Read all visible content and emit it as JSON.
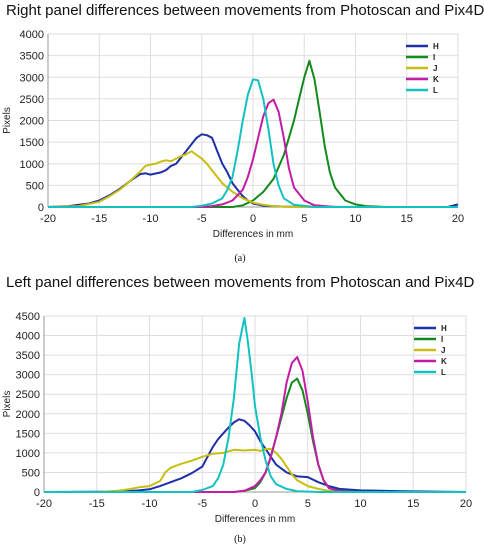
{
  "chart_data": [
    {
      "type": "line",
      "title": "Right panel differences between movements from Photoscan and Pix4D",
      "xlabel": "Differences in mm",
      "ylabel": "Pixels",
      "caption": "(a)",
      "xlim": [
        -20,
        20
      ],
      "ylim": [
        0,
        4000
      ],
      "xticks": [
        "-20",
        "-15",
        "-10",
        "-5",
        "0",
        "5",
        "10",
        "15",
        "20"
      ],
      "yticks": [
        "0",
        "500",
        "1000",
        "1500",
        "2000",
        "2500",
        "3000",
        "3500",
        "4000"
      ],
      "grid": true,
      "legend": "top-right",
      "series": [
        {
          "name": "H",
          "color": "#1f2fa8",
          "points": [
            [
              -20,
              0
            ],
            [
              -18,
              20
            ],
            [
              -16,
              80
            ],
            [
              -15,
              150
            ],
            [
              -14,
              270
            ],
            [
              -13,
              420
            ],
            [
              -12,
              600
            ],
            [
              -11,
              760
            ],
            [
              -10.5,
              780
            ],
            [
              -10,
              750
            ],
            [
              -9,
              800
            ],
            [
              -8.5,
              850
            ],
            [
              -8,
              950
            ],
            [
              -7.5,
              1000
            ],
            [
              -7,
              1150
            ],
            [
              -6.5,
              1300
            ],
            [
              -6,
              1450
            ],
            [
              -5.5,
              1600
            ],
            [
              -5,
              1680
            ],
            [
              -4.5,
              1660
            ],
            [
              -4,
              1600
            ],
            [
              -3.5,
              1300
            ],
            [
              -3,
              1000
            ],
            [
              -2.5,
              800
            ],
            [
              -2,
              550
            ],
            [
              -1.5,
              400
            ],
            [
              -1,
              250
            ],
            [
              -0.5,
              150
            ],
            [
              0,
              80
            ],
            [
              1,
              30
            ],
            [
              3,
              10
            ],
            [
              10,
              0
            ],
            [
              19,
              0
            ],
            [
              20,
              60
            ]
          ]
        },
        {
          "name": "I",
          "color": "#128a1c",
          "points": [
            [
              -20,
              0
            ],
            [
              -2,
              0
            ],
            [
              -1,
              40
            ],
            [
              0,
              150
            ],
            [
              1,
              350
            ],
            [
              2,
              650
            ],
            [
              3,
              1200
            ],
            [
              4,
              2000
            ],
            [
              4.5,
              2500
            ],
            [
              5,
              3000
            ],
            [
              5.5,
              3380
            ],
            [
              6,
              2950
            ],
            [
              6.5,
              2200
            ],
            [
              7,
              1400
            ],
            [
              7.5,
              800
            ],
            [
              8,
              450
            ],
            [
              9,
              150
            ],
            [
              10,
              60
            ],
            [
              11,
              20
            ],
            [
              13,
              0
            ],
            [
              20,
              0
            ]
          ]
        },
        {
          "name": "J",
          "color": "#c7be12",
          "points": [
            [
              -20,
              0
            ],
            [
              -17,
              20
            ],
            [
              -15,
              120
            ],
            [
              -14,
              250
            ],
            [
              -13,
              400
            ],
            [
              -12,
              600
            ],
            [
              -11,
              820
            ],
            [
              -10.5,
              950
            ],
            [
              -10,
              980
            ],
            [
              -9.5,
              1000
            ],
            [
              -9,
              1050
            ],
            [
              -8.5,
              1080
            ],
            [
              -8,
              1060
            ],
            [
              -7.5,
              1120
            ],
            [
              -7,
              1180
            ],
            [
              -6.5,
              1220
            ],
            [
              -6,
              1290
            ],
            [
              -5.5,
              1200
            ],
            [
              -5,
              1120
            ],
            [
              -4.5,
              1000
            ],
            [
              -4,
              850
            ],
            [
              -3.5,
              700
            ],
            [
              -3,
              550
            ],
            [
              -2,
              350
            ],
            [
              -1,
              200
            ],
            [
              0,
              100
            ],
            [
              1,
              50
            ],
            [
              2,
              20
            ],
            [
              4,
              0
            ],
            [
              20,
              0
            ]
          ]
        },
        {
          "name": "K",
          "color": "#c21ca6",
          "points": [
            [
              -20,
              0
            ],
            [
              -5,
              0
            ],
            [
              -4,
              20
            ],
            [
              -3,
              60
            ],
            [
              -2,
              150
            ],
            [
              -1,
              400
            ],
            [
              -0.5,
              700
            ],
            [
              0,
              1100
            ],
            [
              0.5,
              1600
            ],
            [
              1,
              2100
            ],
            [
              1.5,
              2400
            ],
            [
              2,
              2480
            ],
            [
              2.5,
              2200
            ],
            [
              3,
              1600
            ],
            [
              3.5,
              900
            ],
            [
              4,
              450
            ],
            [
              5,
              150
            ],
            [
              6,
              40
            ],
            [
              8,
              0
            ],
            [
              20,
              0
            ]
          ]
        },
        {
          "name": "L",
          "color": "#13c2c0",
          "points": [
            [
              -20,
              0
            ],
            [
              -6,
              0
            ],
            [
              -5,
              30
            ],
            [
              -4,
              80
            ],
            [
              -3,
              200
            ],
            [
              -2.5,
              400
            ],
            [
              -2,
              700
            ],
            [
              -1.5,
              1300
            ],
            [
              -1,
              2000
            ],
            [
              -0.5,
              2600
            ],
            [
              0,
              2950
            ],
            [
              0.5,
              2930
            ],
            [
              1,
              2500
            ],
            [
              1.5,
              1800
            ],
            [
              2,
              1000
            ],
            [
              2.5,
              500
            ],
            [
              3,
              200
            ],
            [
              4,
              50
            ],
            [
              6,
              0
            ],
            [
              20,
              0
            ]
          ]
        }
      ]
    },
    {
      "type": "line",
      "title": "Left panel differences between movements from Photoscan and Pix4D",
      "xlabel": "Differences in mm",
      "ylabel": "Pixels",
      "caption": "(b)",
      "xlim": [
        -20,
        20
      ],
      "ylim": [
        0,
        4500
      ],
      "xticks": [
        "-20",
        "-15",
        "-10",
        "-5",
        "0",
        "5",
        "10",
        "15",
        "20"
      ],
      "yticks": [
        "0",
        "500",
        "1000",
        "1500",
        "2000",
        "2500",
        "3000",
        "3500",
        "4000",
        "4500"
      ],
      "grid": true,
      "legend": "top-right",
      "series": [
        {
          "name": "H",
          "color": "#1f2fa8",
          "points": [
            [
              -20,
              0
            ],
            [
              -13,
              10
            ],
            [
              -11,
              40
            ],
            [
              -10,
              70
            ],
            [
              -9,
              150
            ],
            [
              -8,
              250
            ],
            [
              -7,
              350
            ],
            [
              -6,
              480
            ],
            [
              -5,
              650
            ],
            [
              -4.5,
              900
            ],
            [
              -4,
              1150
            ],
            [
              -3.5,
              1350
            ],
            [
              -3,
              1500
            ],
            [
              -2.5,
              1650
            ],
            [
              -2,
              1780
            ],
            [
              -1.5,
              1860
            ],
            [
              -1,
              1820
            ],
            [
              -0.5,
              1700
            ],
            [
              0,
              1550
            ],
            [
              0.5,
              1300
            ],
            [
              1,
              1100
            ],
            [
              1.5,
              900
            ],
            [
              2,
              700
            ],
            [
              3,
              500
            ],
            [
              4,
              400
            ],
            [
              5,
              380
            ],
            [
              6,
              250
            ],
            [
              7,
              150
            ],
            [
              8,
              80
            ],
            [
              10,
              40
            ],
            [
              14,
              20
            ],
            [
              20,
              0
            ]
          ]
        },
        {
          "name": "I",
          "color": "#128a1c",
          "points": [
            [
              -20,
              0
            ],
            [
              -2,
              0
            ],
            [
              -1,
              30
            ],
            [
              0,
              100
            ],
            [
              0.5,
              250
            ],
            [
              1,
              500
            ],
            [
              1.5,
              900
            ],
            [
              2,
              1400
            ],
            [
              2.5,
              1900
            ],
            [
              3,
              2400
            ],
            [
              3.5,
              2800
            ],
            [
              4,
              2900
            ],
            [
              4.5,
              2600
            ],
            [
              5,
              2000
            ],
            [
              5.5,
              1300
            ],
            [
              6,
              700
            ],
            [
              6.5,
              300
            ],
            [
              7,
              100
            ],
            [
              8,
              30
            ],
            [
              10,
              0
            ],
            [
              20,
              0
            ]
          ]
        },
        {
          "name": "J",
          "color": "#c7be12",
          "points": [
            [
              -20,
              0
            ],
            [
              -15,
              0
            ],
            [
              -13,
              30
            ],
            [
              -12,
              70
            ],
            [
              -11,
              120
            ],
            [
              -10,
              150
            ],
            [
              -9,
              280
            ],
            [
              -8.5,
              500
            ],
            [
              -8,
              620
            ],
            [
              -7,
              720
            ],
            [
              -6,
              800
            ],
            [
              -5,
              900
            ],
            [
              -4,
              980
            ],
            [
              -3,
              1000
            ],
            [
              -2.5,
              1040
            ],
            [
              -2,
              1080
            ],
            [
              -1,
              1060
            ],
            [
              0,
              1080
            ],
            [
              0.5,
              1050
            ],
            [
              1,
              1100
            ],
            [
              1.5,
              1100
            ],
            [
              2,
              1000
            ],
            [
              2.5,
              850
            ],
            [
              3,
              650
            ],
            [
              3.5,
              450
            ],
            [
              4,
              300
            ],
            [
              5,
              150
            ],
            [
              6,
              80
            ],
            [
              7,
              30
            ],
            [
              9,
              0
            ],
            [
              20,
              0
            ]
          ]
        },
        {
          "name": "K",
          "color": "#c21ca6",
          "points": [
            [
              -20,
              0
            ],
            [
              -2,
              0
            ],
            [
              -1,
              30
            ],
            [
              0,
              150
            ],
            [
              0.5,
              300
            ],
            [
              1,
              500
            ],
            [
              1.5,
              900
            ],
            [
              2,
              1400
            ],
            [
              2.5,
              2000
            ],
            [
              3,
              2800
            ],
            [
              3.5,
              3300
            ],
            [
              4,
              3450
            ],
            [
              4.5,
              3100
            ],
            [
              5,
              2300
            ],
            [
              5.5,
              1400
            ],
            [
              6,
              700
            ],
            [
              6.5,
              300
            ],
            [
              7,
              100
            ],
            [
              8,
              20
            ],
            [
              10,
              0
            ],
            [
              20,
              0
            ]
          ]
        },
        {
          "name": "L",
          "color": "#13c2c0",
          "points": [
            [
              -20,
              0
            ],
            [
              -6,
              0
            ],
            [
              -5,
              50
            ],
            [
              -4,
              150
            ],
            [
              -3.5,
              350
            ],
            [
              -3,
              700
            ],
            [
              -2.5,
              1400
            ],
            [
              -2,
              2400
            ],
            [
              -1.5,
              3800
            ],
            [
              -1,
              4450
            ],
            [
              -0.7,
              3900
            ],
            [
              -0.3,
              3000
            ],
            [
              0,
              2200
            ],
            [
              0.5,
              1400
            ],
            [
              1,
              800
            ],
            [
              1.5,
              400
            ],
            [
              2,
              200
            ],
            [
              3,
              80
            ],
            [
              4,
              20
            ],
            [
              6,
              0
            ],
            [
              20,
              0
            ]
          ]
        }
      ]
    }
  ]
}
